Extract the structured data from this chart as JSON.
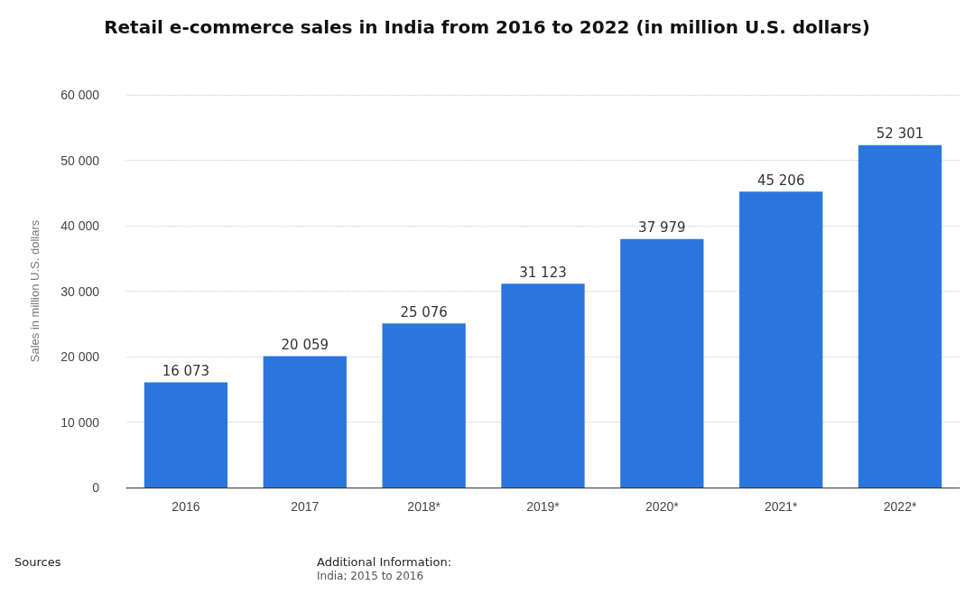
{
  "chart_data": {
    "type": "bar",
    "title": "Retail e-commerce sales in India from 2016 to 2022 (in million U.S. dollars)",
    "ylabel": "Sales in million U.S. dollars",
    "categories": [
      "2016",
      "2017",
      "2018*",
      "2019*",
      "2020*",
      "2021*",
      "2022*"
    ],
    "values": [
      16073,
      20059,
      25076,
      31123,
      37979,
      45206,
      52301
    ],
    "value_labels": [
      "16 073",
      "20 059",
      "25 076",
      "31 123",
      "37 979",
      "45 206",
      "52 301"
    ],
    "color": "#2a76dd",
    "ylim": [
      0,
      60000
    ],
    "yticks": [
      {
        "value": 0,
        "label": "0"
      },
      {
        "value": 10000,
        "label": "10 000"
      },
      {
        "value": 20000,
        "label": "20 000"
      },
      {
        "value": 30000,
        "label": "30 000"
      },
      {
        "value": 40000,
        "label": "40 000"
      },
      {
        "value": 50000,
        "label": "50 000"
      },
      {
        "value": 60000,
        "label": "60 000"
      }
    ],
    "grid": "y",
    "annotations": [
      "Sources",
      "Additional Information:",
      "India; 2015 to 2016"
    ]
  }
}
